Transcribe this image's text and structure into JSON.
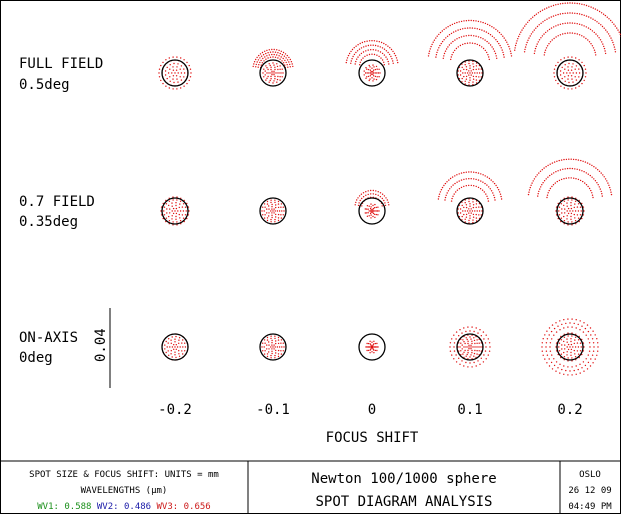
{
  "fields": [
    {
      "name": "FULL FIELD",
      "angle": "0.5deg"
    },
    {
      "name": "0.7 FIELD",
      "angle": "0.35deg"
    },
    {
      "name": "ON-AXIS",
      "angle": "0deg"
    }
  ],
  "scale_bar_label": "0.04",
  "focus_shifts": [
    "-0.2",
    "-0.1",
    "0",
    "0.1",
    "0.2"
  ],
  "axis_title": "FOCUS SHIFT",
  "footer": {
    "units_line": "SPOT SIZE & FOCUS SHIFT: UNITS = mm",
    "wavelengths_line": "WAVELENGTHS (µm)",
    "wavelengths": [
      {
        "label": "WV1:",
        "value": "0.588",
        "color": "#1a8f1a"
      },
      {
        "label": "WV2:",
        "value": "0.486",
        "color": "#1a1aa8"
      },
      {
        "label": "WV3:",
        "value": "0.656",
        "color": "#cc1a1a"
      }
    ],
    "title_line1": "Newton 100/1000 sphere",
    "title_line2": "SPOT DIAGRAM ANALYSIS",
    "program": "OSLO",
    "date": "26 12 09",
    "time": "04:49 PM"
  },
  "colors": {
    "spot": "#e01010",
    "circle": "#000000"
  }
}
